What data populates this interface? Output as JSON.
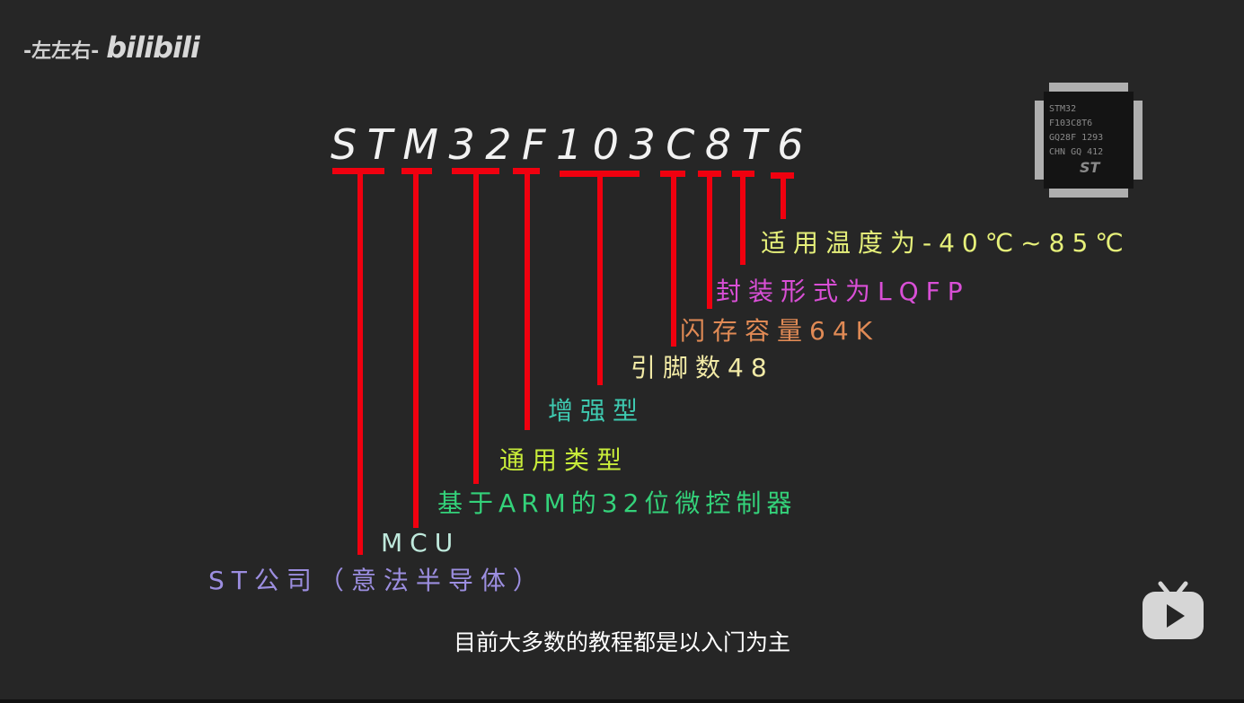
{
  "watermark": {
    "channel": "-左左右-",
    "logo": "bilibili"
  },
  "part_number": "STM32F103C8T6",
  "chip_marking": [
    "STM32",
    "F103C8T6",
    "GQ28F 1293",
    "CHN GQ 412"
  ],
  "labels": [
    {
      "text": "适用温度为-40℃~85℃",
      "color": "#e6f07a"
    },
    {
      "text": "封装形式为LQFP",
      "color": "#d94fd6"
    },
    {
      "text": "闪存容量64K",
      "color": "#e08a55"
    },
    {
      "text": "引脚数48",
      "color": "#f2eaa6"
    },
    {
      "text": "增强型",
      "color": "#3ec9b0"
    },
    {
      "text": "通用类型",
      "color": "#c8ec3a"
    },
    {
      "text": "基于ARM的32位微控制器",
      "color": "#34d27a"
    },
    {
      "text": "MCU",
      "color": "#bfe9dc"
    },
    {
      "text": "ST公司（意法半导体）",
      "color": "#9c8ee0"
    }
  ],
  "line_color": "#f0000f",
  "subtitle": "目前大多数的教程都是以入门为主",
  "player_icon": "bilibili-tv-play-icon"
}
